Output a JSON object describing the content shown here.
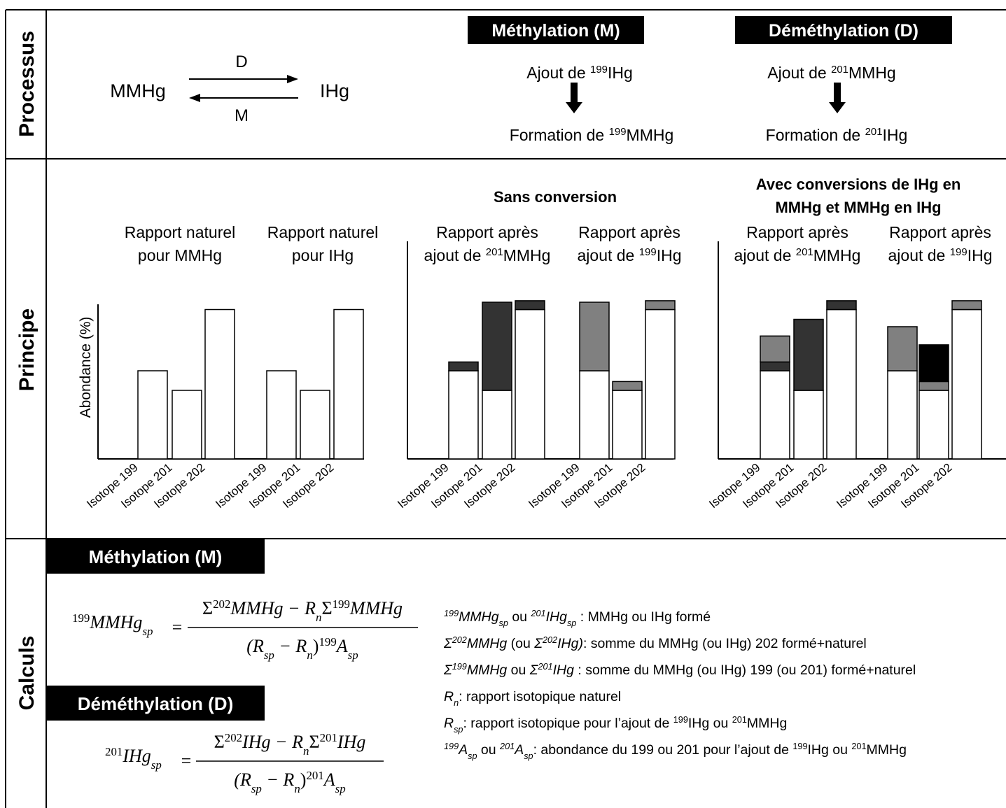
{
  "sections": [
    "Processus",
    "Principe",
    "Calculs"
  ],
  "processus": {
    "reaction": {
      "left": "MMHg",
      "right": "IHg",
      "forward": "D",
      "backward": "M"
    },
    "methylation": {
      "title": "Méthylation (M)",
      "step1": [
        "Ajout de ",
        "199",
        "IHg"
      ],
      "step2": [
        "Formation de ",
        "199",
        "MMHg"
      ]
    },
    "demethylation": {
      "title": "Déméthylation (D)",
      "step1": [
        "Ajout de ",
        "201",
        "MMHg"
      ],
      "step2": [
        "Formation de ",
        "201",
        "IHg"
      ]
    }
  },
  "principe": {
    "y_label": "Abondance (%)",
    "group_titles": [
      [
        "Sans conversion"
      ],
      [
        "Avec conversions de IHg en",
        "MMHg et MMHg en IHg"
      ]
    ],
    "panels": [
      {
        "title": [
          [
            "Rapport naturel"
          ],
          [
            "pour MMHg"
          ]
        ],
        "categories": [
          "Isotope 199",
          "Isotope 201",
          "Isotope 202"
        ],
        "segments": [
          {
            "color": "#ffffff",
            "values": [
              18,
              14,
              30.5
            ]
          }
        ]
      },
      {
        "title": [
          [
            "Rapport naturel"
          ],
          [
            "pour IHg"
          ]
        ],
        "categories": [
          "Isotope 199",
          "Isotope 201",
          "Isotope 202"
        ],
        "segments": [
          {
            "color": "#ffffff",
            "values": [
              18,
              14,
              30.5
            ]
          }
        ]
      },
      {
        "title": [
          [
            "Rapport après"
          ],
          [
            "ajout de ",
            "201",
            "MMHg"
          ]
        ],
        "categories": [
          "Isotope 199",
          "Isotope 201",
          "Isotope 202"
        ],
        "segments": [
          {
            "color": "#ffffff",
            "values": [
              18,
              14,
              30.5
            ]
          },
          {
            "color": "#333333",
            "values": [
              1.8,
              18,
              1.8
            ]
          }
        ]
      },
      {
        "title": [
          [
            "Rapport après"
          ],
          [
            "ajout de ",
            "199",
            "IHg"
          ]
        ],
        "categories": [
          "Isotope 199",
          "Isotope 201",
          "Isotope 202"
        ],
        "segments": [
          {
            "color": "#ffffff",
            "values": [
              18,
              14,
              30.5
            ]
          },
          {
            "color": "#808080",
            "values": [
              14,
              1.8,
              1.8
            ]
          }
        ]
      },
      {
        "title": [
          [
            "Rapport après"
          ],
          [
            "ajout de ",
            "201",
            "MMHg"
          ]
        ],
        "categories": [
          "Isotope 199",
          "Isotope 201",
          "Isotope 202"
        ],
        "segments": [
          {
            "color": "#ffffff",
            "values": [
              18,
              14,
              30.5
            ]
          },
          {
            "color": "#333333",
            "values": [
              1.8,
              14.5,
              1.8
            ]
          },
          {
            "color": "#808080",
            "values": [
              5.3,
              null,
              null
            ]
          }
        ]
      },
      {
        "title": [
          [
            "Rapport après"
          ],
          [
            "ajout de ",
            "199",
            "IHg"
          ]
        ],
        "categories": [
          "Isotope 199",
          "Isotope 201",
          "Isotope 202"
        ],
        "segments": [
          {
            "color": "#ffffff",
            "values": [
              18,
              14,
              30.5
            ]
          },
          {
            "color": "#808080",
            "values": [
              9,
              1.8,
              1.8
            ]
          },
          {
            "color": "#000000",
            "values": [
              null,
              7.5,
              null
            ]
          }
        ]
      }
    ]
  },
  "calculs": {
    "methylation": {
      "title": "Méthylation (M)",
      "lhs": [
        "199",
        "MMHg",
        "sp"
      ],
      "eq": "=",
      "num": [
        "Σ",
        "202",
        "MMHg − R",
        "n",
        "Σ",
        "199",
        "MMHg"
      ],
      "den": [
        "(R",
        "sp",
        " − R",
        "n",
        ")",
        "199",
        "A",
        "sp"
      ]
    },
    "demethylation": {
      "title": "Déméthylation (D)",
      "lhs": [
        "201",
        "IHg",
        "sp"
      ],
      "eq": "=",
      "num": [
        "Σ",
        "202",
        "IHg − R",
        "n",
        "Σ",
        "201",
        "IHg"
      ],
      "den": [
        "(R",
        "sp",
        " − R",
        "n",
        ")",
        "201",
        "A",
        "sp"
      ]
    },
    "legend": [
      [
        "199",
        "MMHg",
        "sp",
        " ou ",
        "201",
        "IHg",
        "sp",
        " : MMHg ou IHg formé"
      ],
      [
        "Σ",
        "202",
        "MMHg",
        " (ou ",
        "Σ",
        "202",
        "IHg)",
        ": somme du MMHg (ou IHg) 202 formé+naturel"
      ],
      [
        "Σ",
        "199",
        "MMHg",
        " ou ",
        "Σ",
        "201",
        "IHg",
        " : somme du MMHg (ou IHg) 199 (ou 201) formé+naturel"
      ],
      [
        "R",
        "n",
        ": rapport isotopique naturel"
      ],
      [
        "R",
        "sp",
        ": rapport isotopique pour l’ajout de ",
        "199",
        "IHg ou ",
        "201",
        "MMHg"
      ],
      [
        "199",
        "A",
        "sp",
        " ou ",
        "201",
        "A",
        "sp",
        ": abondance du 199 ou 201 pour l’ajout de ",
        "199",
        "IHg ou ",
        "201",
        "MMHg"
      ]
    ]
  }
}
